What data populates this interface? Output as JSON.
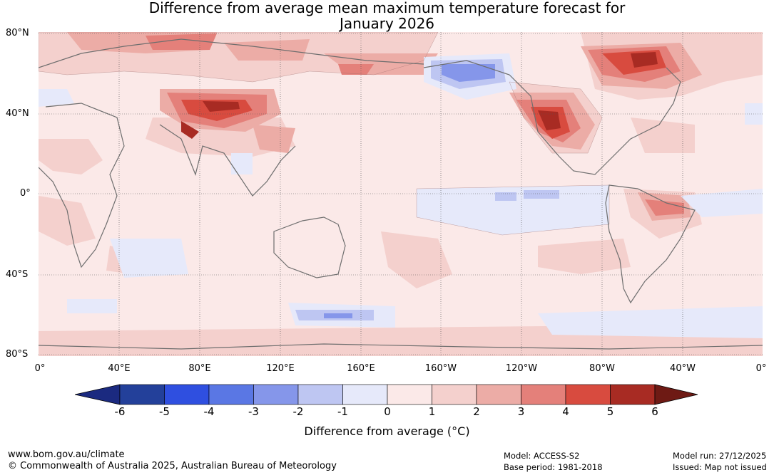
{
  "title": {
    "line1": "Difference from average mean maximum temperature forecast for",
    "line2": "January 2026"
  },
  "map": {
    "lat_labels": [
      "80°N",
      "40°N",
      "0°",
      "40°S",
      "80°S"
    ],
    "lon_labels": [
      "0°",
      "40°E",
      "80°E",
      "120°E",
      "160°E",
      "160°W",
      "120°W",
      "80°W",
      "40°W",
      "0°"
    ],
    "anomaly_regions": [
      {
        "name": "central-asia-warm",
        "anomaly": 4
      },
      {
        "name": "north-siberia-warm",
        "anomaly": 3
      },
      {
        "name": "alaska-cool",
        "anomaly": -2
      },
      {
        "name": "western-north-america-warm",
        "anomaly": 5
      },
      {
        "name": "northeast-canada-warm",
        "anomaly": 5
      },
      {
        "name": "brazil-warm",
        "anomaly": 3
      },
      {
        "name": "equatorial-pacific-cool",
        "anomaly": -1
      },
      {
        "name": "southern-ocean-cool",
        "anomaly": -2
      }
    ]
  },
  "colorbar": {
    "ticks": [
      "-6",
      "-5",
      "-4",
      "-3",
      "-2",
      "-1",
      "0",
      "1",
      "2",
      "3",
      "4",
      "5",
      "6"
    ],
    "colors": [
      "#23409a",
      "#2f4fe0",
      "#5a77e4",
      "#8596ea",
      "#bec6f2",
      "#e6e9fa",
      "#fbe9e8",
      "#f4d0cd",
      "#ecaca6",
      "#e4807a",
      "#d84b3f",
      "#a82b23"
    ],
    "low_extend_color": "#1b2a80",
    "high_extend_color": "#6e1a14",
    "label": "Difference from average (°C)"
  },
  "footer": {
    "url": "www.bom.gov.au/climate",
    "copyright": "© Commonwealth of Australia 2025, Australian Bureau of Meteorology",
    "model": "Model: ACCESS-S2",
    "base_period": "Base period: 1981-2018",
    "model_run": "Model run: 27/12/2025",
    "issued": "Issued: Map not issued"
  }
}
